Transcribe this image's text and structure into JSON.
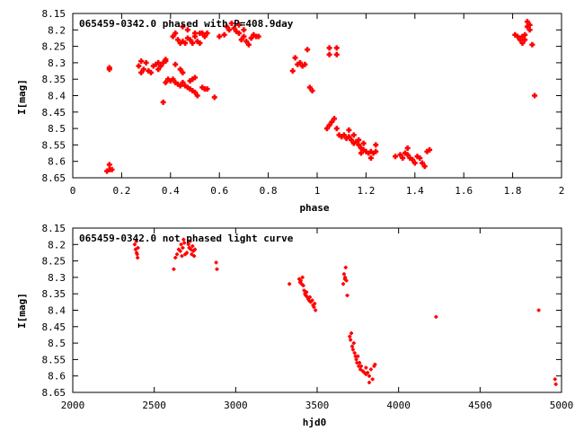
{
  "chart_data": [
    {
      "type": "scatter",
      "title": "065459-0342.0 phased with P=408.9day",
      "xlabel": "phase",
      "ylabel": "I[mag]",
      "xlim": [
        0,
        2
      ],
      "ylim": [
        8.15,
        8.65
      ],
      "y_inverted": true,
      "xticks": [
        0,
        0.2,
        0.4,
        0.6,
        0.8,
        1,
        1.2,
        1.4,
        1.6,
        1.8,
        2
      ],
      "xtick_labels": [
        "0",
        "0.2",
        "0.4",
        "0.6",
        "0.8",
        "1",
        "1.2",
        "1.4",
        "1.6",
        "1.8",
        "2"
      ],
      "yticks": [
        8.15,
        8.2,
        8.25,
        8.3,
        8.35,
        8.4,
        8.45,
        8.5,
        8.55,
        8.6,
        8.65
      ],
      "ytick_labels": [
        "8.15",
        "8.2",
        "8.25",
        "8.3",
        "8.35",
        "8.4",
        "8.45",
        "8.5",
        "8.55",
        "8.6",
        "8.65"
      ],
      "grid": false,
      "color": "#ff0000",
      "marker": "plus",
      "points": [
        [
          0.14,
          8.63
        ],
        [
          0.15,
          8.625
        ],
        [
          0.15,
          8.61
        ],
        [
          0.16,
          8.625
        ],
        [
          0.15,
          8.315
        ],
        [
          0.15,
          8.32
        ],
        [
          0.27,
          8.31
        ],
        [
          0.28,
          8.295
        ],
        [
          0.28,
          8.33
        ],
        [
          0.29,
          8.32
        ],
        [
          0.3,
          8.3
        ],
        [
          0.31,
          8.325
        ],
        [
          0.32,
          8.33
        ],
        [
          0.33,
          8.31
        ],
        [
          0.34,
          8.305
        ],
        [
          0.35,
          8.3
        ],
        [
          0.36,
          8.31
        ],
        [
          0.37,
          8.3
        ],
        [
          0.38,
          8.295
        ],
        [
          0.35,
          8.32
        ],
        [
          0.37,
          8.42
        ],
        [
          0.38,
          8.36
        ],
        [
          0.39,
          8.35
        ],
        [
          0.4,
          8.355
        ],
        [
          0.41,
          8.35
        ],
        [
          0.42,
          8.36
        ],
        [
          0.43,
          8.365
        ],
        [
          0.44,
          8.37
        ],
        [
          0.45,
          8.36
        ],
        [
          0.46,
          8.37
        ],
        [
          0.47,
          8.375
        ],
        [
          0.48,
          8.38
        ],
        [
          0.49,
          8.385
        ],
        [
          0.5,
          8.39
        ],
        [
          0.51,
          8.4
        ],
        [
          0.48,
          8.355
        ],
        [
          0.49,
          8.35
        ],
        [
          0.5,
          8.345
        ],
        [
          0.53,
          8.375
        ],
        [
          0.54,
          8.38
        ],
        [
          0.55,
          8.38
        ],
        [
          0.58,
          8.405
        ],
        [
          0.42,
          8.305
        ],
        [
          0.44,
          8.32
        ],
        [
          0.45,
          8.33
        ],
        [
          0.38,
          8.29
        ],
        [
          0.41,
          8.22
        ],
        [
          0.42,
          8.21
        ],
        [
          0.43,
          8.23
        ],
        [
          0.44,
          8.24
        ],
        [
          0.45,
          8.235
        ],
        [
          0.46,
          8.24
        ],
        [
          0.47,
          8.225
        ],
        [
          0.48,
          8.23
        ],
        [
          0.49,
          8.24
        ],
        [
          0.5,
          8.22
        ],
        [
          0.51,
          8.235
        ],
        [
          0.52,
          8.24
        ],
        [
          0.53,
          8.21
        ],
        [
          0.54,
          8.22
        ],
        [
          0.45,
          8.19
        ],
        [
          0.47,
          8.2
        ],
        [
          0.5,
          8.21
        ],
        [
          0.52,
          8.21
        ],
        [
          0.55,
          8.21
        ],
        [
          0.6,
          8.22
        ],
        [
          0.62,
          8.215
        ],
        [
          0.63,
          8.19
        ],
        [
          0.64,
          8.2
        ],
        [
          0.65,
          8.18
        ],
        [
          0.66,
          8.195
        ],
        [
          0.67,
          8.205
        ],
        [
          0.68,
          8.21
        ],
        [
          0.69,
          8.23
        ],
        [
          0.7,
          8.22
        ],
        [
          0.71,
          8.235
        ],
        [
          0.72,
          8.245
        ],
        [
          0.73,
          8.225
        ],
        [
          0.74,
          8.215
        ],
        [
          0.75,
          8.22
        ],
        [
          0.76,
          8.22
        ],
        [
          0.68,
          8.185
        ],
        [
          0.7,
          8.2
        ],
        [
          0.9,
          8.325
        ],
        [
          0.91,
          8.285
        ],
        [
          0.92,
          8.305
        ],
        [
          0.93,
          8.3
        ],
        [
          0.94,
          8.31
        ],
        [
          0.95,
          8.305
        ],
        [
          0.96,
          8.26
        ],
        [
          0.97,
          8.375
        ],
        [
          0.98,
          8.385
        ],
        [
          1.05,
          8.255
        ],
        [
          1.05,
          8.275
        ],
        [
          1.08,
          8.255
        ],
        [
          1.08,
          8.275
        ],
        [
          1.04,
          8.5
        ],
        [
          1.05,
          8.49
        ],
        [
          1.06,
          8.48
        ],
        [
          1.07,
          8.47
        ],
        [
          1.08,
          8.5
        ],
        [
          1.09,
          8.52
        ],
        [
          1.1,
          8.525
        ],
        [
          1.11,
          8.52
        ],
        [
          1.12,
          8.53
        ],
        [
          1.13,
          8.525
        ],
        [
          1.14,
          8.535
        ],
        [
          1.15,
          8.545
        ],
        [
          1.16,
          8.54
        ],
        [
          1.17,
          8.55
        ],
        [
          1.18,
          8.56
        ],
        [
          1.19,
          8.565
        ],
        [
          1.2,
          8.57
        ],
        [
          1.21,
          8.575
        ],
        [
          1.22,
          8.57
        ],
        [
          1.23,
          8.575
        ],
        [
          1.24,
          8.57
        ],
        [
          1.13,
          8.505
        ],
        [
          1.15,
          8.52
        ],
        [
          1.17,
          8.535
        ],
        [
          1.19,
          8.545
        ],
        [
          1.22,
          8.59
        ],
        [
          1.24,
          8.55
        ],
        [
          1.18,
          8.575
        ],
        [
          1.32,
          8.585
        ],
        [
          1.34,
          8.58
        ],
        [
          1.35,
          8.59
        ],
        [
          1.36,
          8.575
        ],
        [
          1.37,
          8.58
        ],
        [
          1.38,
          8.59
        ],
        [
          1.39,
          8.595
        ],
        [
          1.4,
          8.605
        ],
        [
          1.42,
          8.59
        ],
        [
          1.43,
          8.605
        ],
        [
          1.44,
          8.615
        ],
        [
          1.45,
          8.57
        ],
        [
          1.46,
          8.565
        ],
        [
          1.37,
          8.56
        ],
        [
          1.41,
          8.585
        ],
        [
          1.81,
          8.215
        ],
        [
          1.82,
          8.22
        ],
        [
          1.83,
          8.23
        ],
        [
          1.84,
          8.22
        ],
        [
          1.85,
          8.215
        ],
        [
          1.86,
          8.19
        ],
        [
          1.86,
          8.175
        ],
        [
          1.87,
          8.185
        ],
        [
          1.87,
          8.2
        ],
        [
          1.84,
          8.24
        ],
        [
          1.88,
          8.245
        ],
        [
          1.85,
          8.23
        ],
        [
          1.89,
          8.4
        ]
      ]
    },
    {
      "type": "scatter",
      "title": "065459-0342.0 not phased light curve",
      "xlabel": "hjd0",
      "ylabel": "I[mag]",
      "xlim": [
        2000,
        5000
      ],
      "ylim": [
        8.15,
        8.65
      ],
      "y_inverted": true,
      "xticks": [
        2000,
        2500,
        3000,
        3500,
        4000,
        4500,
        5000
      ],
      "xtick_labels": [
        "2000",
        "2500",
        "3000",
        "3500",
        "4000",
        "4500",
        "5000"
      ],
      "yticks": [
        8.15,
        8.2,
        8.25,
        8.3,
        8.35,
        8.4,
        8.45,
        8.5,
        8.55,
        8.6,
        8.65
      ],
      "ytick_labels": [
        "8.15",
        "8.2",
        "8.25",
        "8.3",
        "8.35",
        "8.4",
        "8.45",
        "8.5",
        "8.55",
        "8.6",
        "8.65"
      ],
      "grid": false,
      "color": "#ff0000",
      "marker": "plus",
      "points": [
        [
          2380,
          8.2
        ],
        [
          2385,
          8.215
        ],
        [
          2390,
          8.19
        ],
        [
          2392,
          8.225
        ],
        [
          2395,
          8.23
        ],
        [
          2398,
          8.24
        ],
        [
          2400,
          8.21
        ],
        [
          2620,
          8.275
        ],
        [
          2630,
          8.24
        ],
        [
          2640,
          8.23
        ],
        [
          2650,
          8.215
        ],
        [
          2660,
          8.22
        ],
        [
          2665,
          8.2
        ],
        [
          2670,
          8.235
        ],
        [
          2675,
          8.21
        ],
        [
          2680,
          8.185
        ],
        [
          2685,
          8.195
        ],
        [
          2690,
          8.23
        ],
        [
          2700,
          8.225
        ],
        [
          2710,
          8.2
        ],
        [
          2715,
          8.21
        ],
        [
          2720,
          8.19
        ],
        [
          2725,
          8.215
        ],
        [
          2730,
          8.23
        ],
        [
          2735,
          8.205
        ],
        [
          2740,
          8.22
        ],
        [
          2745,
          8.235
        ],
        [
          2750,
          8.215
        ],
        [
          2880,
          8.255
        ],
        [
          2885,
          8.275
        ],
        [
          3330,
          8.32
        ],
        [
          3390,
          8.305
        ],
        [
          3395,
          8.315
        ],
        [
          3400,
          8.31
        ],
        [
          3405,
          8.32
        ],
        [
          3410,
          8.3
        ],
        [
          3415,
          8.325
        ],
        [
          3420,
          8.34
        ],
        [
          3425,
          8.35
        ],
        [
          3430,
          8.355
        ],
        [
          3435,
          8.345
        ],
        [
          3440,
          8.36
        ],
        [
          3445,
          8.365
        ],
        [
          3450,
          8.37
        ],
        [
          3455,
          8.36
        ],
        [
          3460,
          8.375
        ],
        [
          3470,
          8.37
        ],
        [
          3475,
          8.385
        ],
        [
          3480,
          8.39
        ],
        [
          3485,
          8.38
        ],
        [
          3490,
          8.4
        ],
        [
          3660,
          8.32
        ],
        [
          3665,
          8.29
        ],
        [
          3670,
          8.305
        ],
        [
          3672,
          8.3
        ],
        [
          3675,
          8.27
        ],
        [
          3680,
          8.31
        ],
        [
          3685,
          8.355
        ],
        [
          3700,
          8.48
        ],
        [
          3705,
          8.49
        ],
        [
          3710,
          8.47
        ],
        [
          3715,
          8.51
        ],
        [
          3720,
          8.52
        ],
        [
          3725,
          8.5
        ],
        [
          3730,
          8.53
        ],
        [
          3735,
          8.54
        ],
        [
          3740,
          8.55
        ],
        [
          3745,
          8.56
        ],
        [
          3750,
          8.54
        ],
        [
          3755,
          8.57
        ],
        [
          3760,
          8.56
        ],
        [
          3765,
          8.58
        ],
        [
          3770,
          8.57
        ],
        [
          3780,
          8.585
        ],
        [
          3790,
          8.59
        ],
        [
          3800,
          8.575
        ],
        [
          3810,
          8.59
        ],
        [
          3820,
          8.6
        ],
        [
          3830,
          8.58
        ],
        [
          3840,
          8.61
        ],
        [
          3850,
          8.57
        ],
        [
          3855,
          8.565
        ],
        [
          3820,
          8.62
        ],
        [
          3800,
          8.595
        ],
        [
          4230,
          8.42
        ],
        [
          4860,
          8.4
        ],
        [
          4960,
          8.61
        ],
        [
          4965,
          8.625
        ]
      ]
    }
  ]
}
